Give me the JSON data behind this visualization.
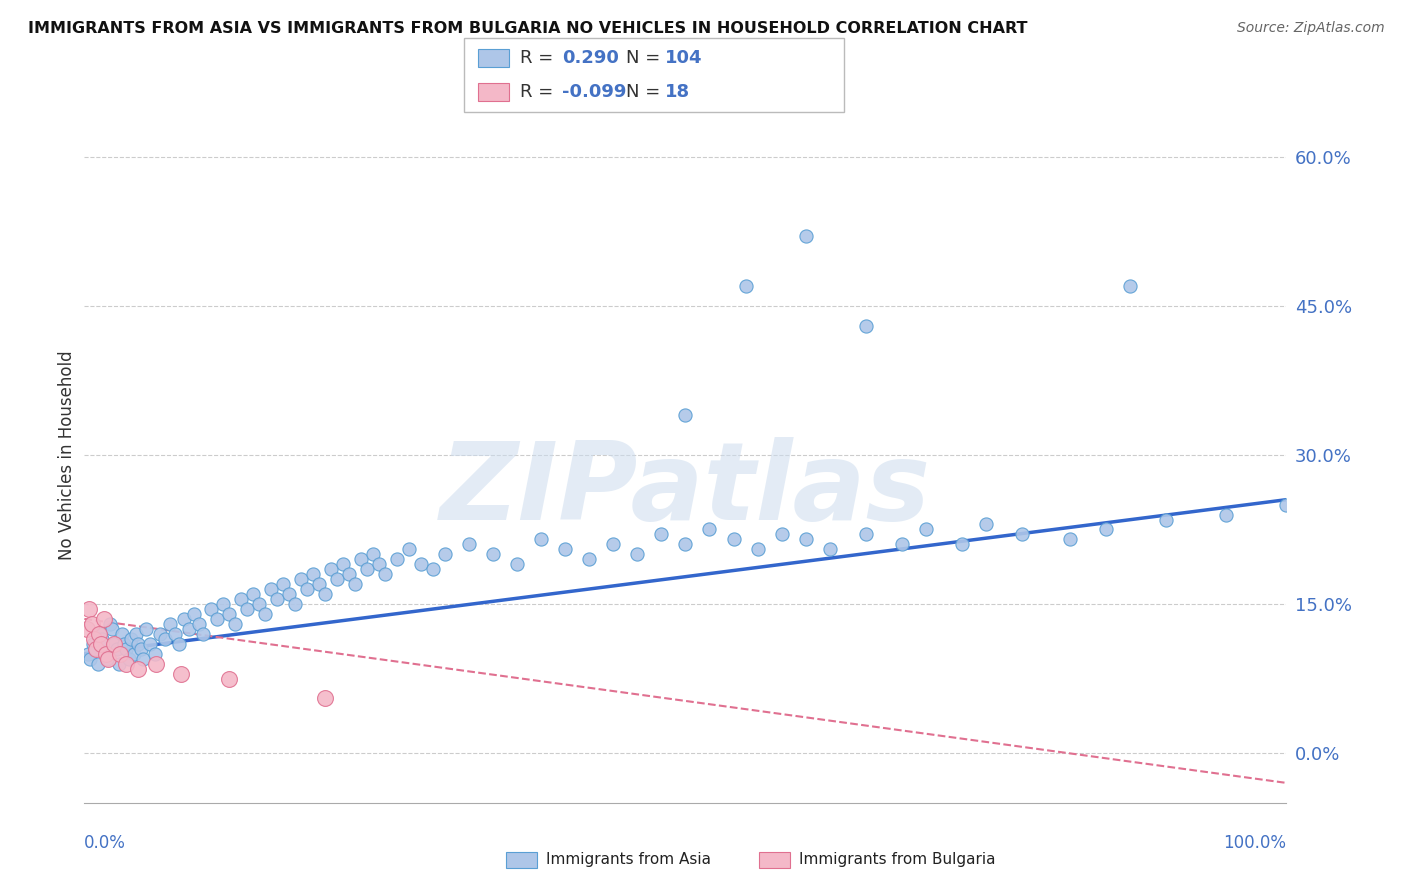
{
  "title": "IMMIGRANTS FROM ASIA VS IMMIGRANTS FROM BULGARIA NO VEHICLES IN HOUSEHOLD CORRELATION CHART",
  "source": "Source: ZipAtlas.com",
  "ylabel": "No Vehicles in Household",
  "xlim": [
    0.0,
    100.0
  ],
  "ylim": [
    -5.0,
    65.0
  ],
  "ytick_vals": [
    0.0,
    15.0,
    30.0,
    45.0,
    60.0
  ],
  "legend_asia_R": "0.290",
  "legend_asia_N": "104",
  "legend_bulgaria_R": "-0.099",
  "legend_bulgaria_N": "18",
  "asia_color": "#aec6e8",
  "asia_edge": "#5a9fd4",
  "asia_line_color": "#3366cc",
  "bulgaria_color": "#f4b8c8",
  "bulgaria_edge": "#e07090",
  "bulgaria_line_color": "#e07090",
  "watermark": "ZIPatlas",
  "asia_x": [
    0.3,
    0.5,
    0.7,
    0.9,
    1.1,
    1.3,
    1.5,
    1.7,
    1.9,
    2.1,
    2.3,
    2.5,
    2.7,
    2.9,
    3.1,
    3.3,
    3.5,
    3.7,
    3.9,
    4.1,
    4.3,
    4.5,
    4.7,
    4.9,
    5.1,
    5.5,
    5.9,
    6.3,
    6.7,
    7.1,
    7.5,
    7.9,
    8.3,
    8.7,
    9.1,
    9.5,
    9.9,
    10.5,
    11.0,
    11.5,
    12.0,
    12.5,
    13.0,
    13.5,
    14.0,
    14.5,
    15.0,
    15.5,
    16.0,
    16.5,
    17.0,
    17.5,
    18.0,
    18.5,
    19.0,
    19.5,
    20.0,
    20.5,
    21.0,
    21.5,
    22.0,
    22.5,
    23.0,
    23.5,
    24.0,
    24.5,
    25.0,
    26.0,
    27.0,
    28.0,
    29.0,
    30.0,
    32.0,
    34.0,
    36.0,
    38.0,
    40.0,
    42.0,
    44.0,
    46.0,
    48.0,
    50.0,
    52.0,
    54.0,
    56.0,
    58.0,
    60.0,
    62.0,
    65.0,
    68.0,
    70.0,
    73.0,
    75.0,
    78.0,
    82.0,
    85.0,
    90.0,
    95.0,
    100.0,
    50.0,
    55.0,
    60.0,
    65.0,
    87.0
  ],
  "asia_y": [
    10.0,
    9.5,
    11.0,
    10.5,
    9.0,
    12.0,
    11.5,
    10.0,
    9.5,
    13.0,
    12.5,
    11.0,
    10.5,
    9.0,
    12.0,
    11.0,
    10.5,
    9.5,
    11.5,
    10.0,
    12.0,
    11.0,
    10.5,
    9.5,
    12.5,
    11.0,
    10.0,
    12.0,
    11.5,
    13.0,
    12.0,
    11.0,
    13.5,
    12.5,
    14.0,
    13.0,
    12.0,
    14.5,
    13.5,
    15.0,
    14.0,
    13.0,
    15.5,
    14.5,
    16.0,
    15.0,
    14.0,
    16.5,
    15.5,
    17.0,
    16.0,
    15.0,
    17.5,
    16.5,
    18.0,
    17.0,
    16.0,
    18.5,
    17.5,
    19.0,
    18.0,
    17.0,
    19.5,
    18.5,
    20.0,
    19.0,
    18.0,
    19.5,
    20.5,
    19.0,
    18.5,
    20.0,
    21.0,
    20.0,
    19.0,
    21.5,
    20.5,
    19.5,
    21.0,
    20.0,
    22.0,
    21.0,
    22.5,
    21.5,
    20.5,
    22.0,
    21.5,
    20.5,
    22.0,
    21.0,
    22.5,
    21.0,
    23.0,
    22.0,
    21.5,
    22.5,
    23.5,
    24.0,
    25.0,
    34.0,
    47.0,
    52.0,
    43.0,
    47.0
  ],
  "bulgaria_x": [
    0.2,
    0.4,
    0.6,
    0.8,
    1.0,
    1.2,
    1.4,
    1.6,
    1.8,
    2.0,
    2.5,
    3.0,
    3.5,
    4.5,
    6.0,
    8.0,
    12.0,
    20.0
  ],
  "bulgaria_y": [
    12.5,
    14.5,
    13.0,
    11.5,
    10.5,
    12.0,
    11.0,
    13.5,
    10.0,
    9.5,
    11.0,
    10.0,
    9.0,
    8.5,
    9.0,
    8.0,
    7.5,
    5.5
  ],
  "asia_trend_x0": 0.0,
  "asia_trend_x1": 100.0,
  "asia_trend_y0": 10.0,
  "asia_trend_y1": 25.5,
  "bulgaria_trend_x0": 0.0,
  "bulgaria_trend_x1": 100.0,
  "bulgaria_trend_y0": 13.5,
  "bulgaria_trend_y1": -3.0
}
